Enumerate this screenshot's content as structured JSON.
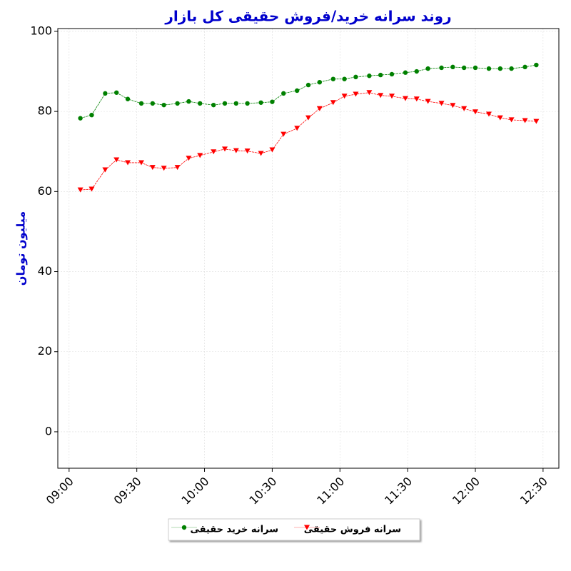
{
  "chart_data": {
    "type": "line",
    "title": "روند سرانه خرید/فروش حقیقی کل بازار",
    "y_label": "میلیون تومان",
    "x": [
      "09:05",
      "09:10",
      "09:16",
      "09:21",
      "09:26",
      "09:32",
      "09:37",
      "09:42",
      "09:48",
      "09:53",
      "09:58",
      "10:04",
      "10:09",
      "10:14",
      "10:19",
      "10:25",
      "10:30",
      "10:35",
      "10:41",
      "10:46",
      "10:51",
      "10:57",
      "11:02",
      "11:07",
      "11:13",
      "11:18",
      "11:23",
      "11:29",
      "11:34",
      "11:39",
      "11:45",
      "11:50",
      "11:55",
      "12:00",
      "12:06",
      "12:11",
      "12:16",
      "12:22",
      "12:27"
    ],
    "series": [
      {
        "name": "سرانه خرید حقیقی",
        "color": "#008000",
        "marker": "circle",
        "values": [
          78.3,
          79.1,
          84.5,
          84.7,
          83.1,
          82.0,
          82.0,
          81.6,
          82.0,
          82.5,
          82.0,
          81.6,
          82.0,
          82.0,
          82.0,
          82.2,
          82.4,
          84.5,
          85.2,
          86.6,
          87.3,
          88.1,
          88.1,
          88.6,
          88.9,
          89.1,
          89.3,
          89.7,
          90.0,
          90.7,
          90.9,
          91.1,
          90.9,
          90.9,
          90.7,
          90.7,
          90.7,
          91.1,
          91.6
        ]
      },
      {
        "name": "سرانه فروش حقیقی",
        "color": "#ff0000",
        "marker": "triangle-down",
        "values": [
          60.4,
          60.6,
          65.4,
          67.9,
          67.2,
          67.2,
          66.0,
          65.8,
          66.0,
          68.3,
          69.0,
          69.9,
          70.6,
          70.2,
          70.1,
          69.5,
          70.4,
          74.3,
          75.8,
          78.4,
          80.7,
          82.2,
          83.8,
          84.3,
          84.7,
          84.0,
          83.8,
          83.2,
          83.1,
          82.5,
          82.0,
          81.5,
          80.7,
          79.9,
          79.3,
          78.4,
          77.9,
          77.7,
          77.5
        ]
      }
    ],
    "xlim": [
      "08:55",
      "12:37"
    ],
    "xticks": [
      "09:00",
      "09:30",
      "10:00",
      "10:30",
      "11:00",
      "11:30",
      "12:00",
      "12:30"
    ],
    "ylim": [
      -9.1,
      100.7
    ],
    "yticks": [
      0,
      20,
      40,
      60,
      80,
      100
    ],
    "grid": true,
    "legend": "bottom"
  }
}
